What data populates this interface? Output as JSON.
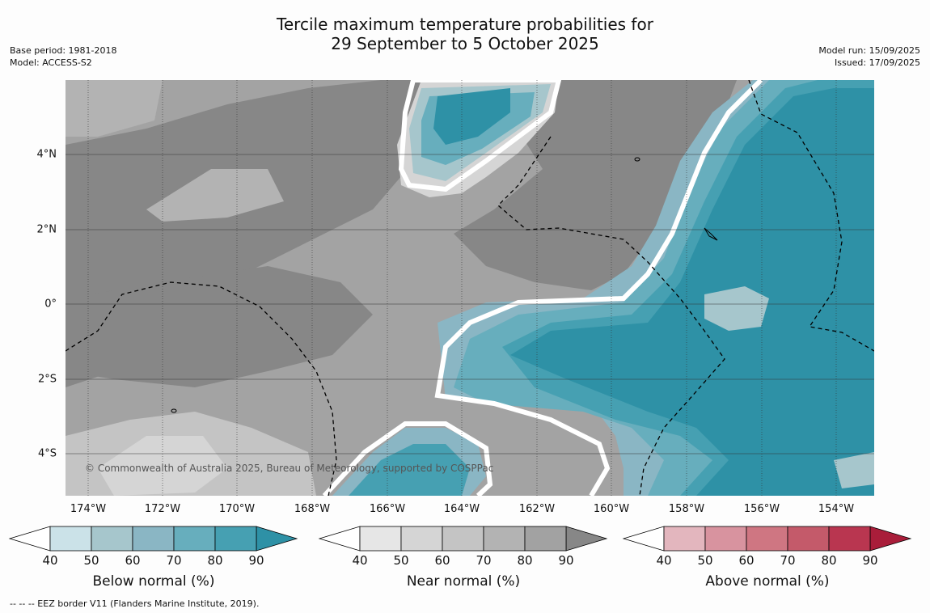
{
  "title_line1": "Tercile maximum temperature probabilities for",
  "title_line2": "29 September to 5 October 2025",
  "meta_left": [
    "Base period: 1981-2018",
    "Model: ACCESS-S2"
  ],
  "meta_right": [
    "Model run: 15/09/2025",
    "Issued: 17/09/2025"
  ],
  "copyright": "© Commonwealth of Australia 2025, Bureau of Meteorology, supported by COSPPac",
  "lon_labels": [
    "174°W",
    "172°W",
    "170°W",
    "168°W",
    "166°W",
    "164°W",
    "162°W",
    "160°W",
    "158°W",
    "156°W",
    "154°W"
  ],
  "lat_labels": [
    "4°N",
    "2°N",
    "0°",
    "2°S",
    "4°S"
  ],
  "colorbars": [
    {
      "title": "Below normal (%)",
      "ticks": [
        "40",
        "50",
        "60",
        "70",
        "80",
        "90"
      ],
      "colors": [
        "#cbe2e8",
        "#a6c6cc",
        "#8ab6c4",
        "#67aebd",
        "#46a0b2",
        "#2e91a6"
      ]
    },
    {
      "title": "Near normal (%)",
      "ticks": [
        "40",
        "50",
        "60",
        "70",
        "80",
        "90"
      ],
      "colors": [
        "#e6e6e6",
        "#d5d5d5",
        "#c4c4c4",
        "#b3b3b3",
        "#a2a2a2",
        "#878787"
      ]
    },
    {
      "title": "Above normal (%)",
      "ticks": [
        "40",
        "50",
        "60",
        "70",
        "80",
        "90"
      ],
      "colors": [
        "#e3b6be",
        "#d8939f",
        "#cf7682",
        "#c45a6a",
        "#b93650",
        "#a91d3a"
      ]
    }
  ],
  "footnote": "--  --  -- EEZ border V11 (Flanders Marine Institute, 2019)."
}
